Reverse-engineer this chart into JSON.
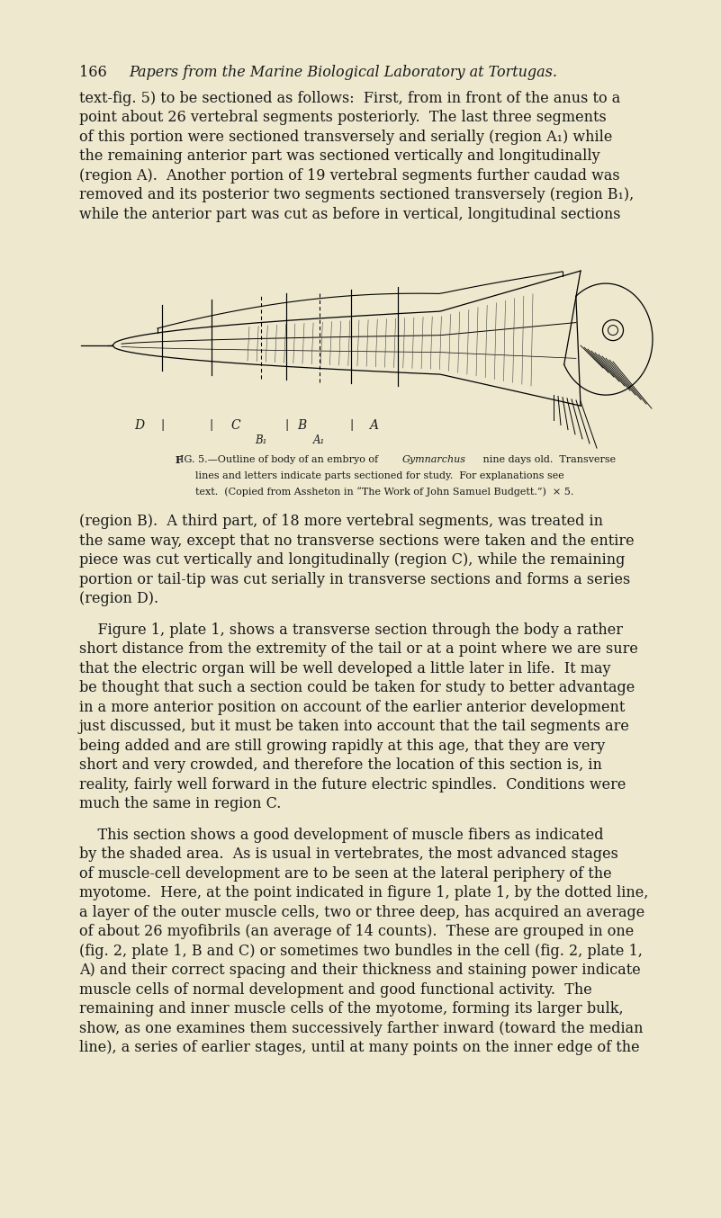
{
  "bg_color": "#ede8ce",
  "page_width": 8.01,
  "page_height": 13.54,
  "text_color": "#1a1a1a",
  "header_line": "166        Papers from the Marine Biological Laboratory at Tortugas.",
  "para1_lines": [
    "text-fig. 5) to be sectioned as follows:  First, from in front of the anus to a",
    "point about 26 vertebral segments posteriorly.  The last three segments",
    "of this portion were sectioned transversely and serially (region $A_1$) while",
    "the remaining anterior part was sectioned vertically and longitudinally",
    "(region $A$).  Another portion of 19 vertebral segments further caudad was",
    "removed and its posterior two segments sectioned transversely (region $B_1$),",
    "while the anterior part was cut as before in vertical, longitudinal sections"
  ],
  "para2_lines": [
    "(region $B$).  A third part, of 18 more vertebral segments, was treated in",
    "the same way, except that no transverse sections were taken and the entire",
    "piece was cut vertically and longitudinally (region $C$), while the remaining",
    "portion or tail-tip was cut serially in transverse sections and forms a series",
    "(region $D$)."
  ],
  "para3_lines": [
    "    Figure 1, plate 1, shows a transverse section through the body a rather",
    "short distance from the extremity of the tail or at a point where we are sure",
    "that the electric organ will be well developed a little later in life.  It may",
    "be thought that such a section could be taken for study to better advantage",
    "in a more anterior position on account of the earlier anterior development",
    "just discussed, but it must be taken into account that the tail segments are",
    "being added and are still growing rapidly at this age, that they are very",
    "short and very crowded, and therefore the location of this section is, in",
    "reality, fairly well forward in the future electric spindles.  Conditions were",
    "much the same in region C."
  ],
  "para4_lines": [
    "    This section shows a good development of muscle fibers as indicated",
    "by the shaded area.  As is usual in vertebrates, the most advanced stages",
    "of muscle-cell development are to be seen at the lateral periphery of the",
    "myotome.  Here, at the point indicated in figure 1, plate 1, by the dotted line,",
    "a layer of the outer muscle cells, two or three deep, has acquired an average",
    "of about 26 myofibrils (an average of 14 counts).  These are grouped in one",
    "(fig. 2, plate 1, $B$ and $C$) or sometimes two bundles in the cell (fig. 2, plate 1,",
    "$A$) and their correct spacing and their thickness and staining power indicate",
    "muscle cells of normal development and good functional activity.  The",
    "remaining and inner muscle cells of the myotome, forming its larger bulk,",
    "show, as one examines them successively farther inward (toward the median",
    "line), a series of earlier stages, until at many points on the inner edge of the"
  ],
  "caption_line1": "Fig. 5.—Outline of body of an embryo of ",
  "caption_gymnarchus": "Gymnarchus",
  "caption_line1b": " nine days old.  Transverse",
  "caption_line2": "lines and letters indicate parts sectioned for study.  For explanations see",
  "caption_line3": "text.  (Copied from Assheton in “The Work of John Samuel Budgett.”)  × 5."
}
